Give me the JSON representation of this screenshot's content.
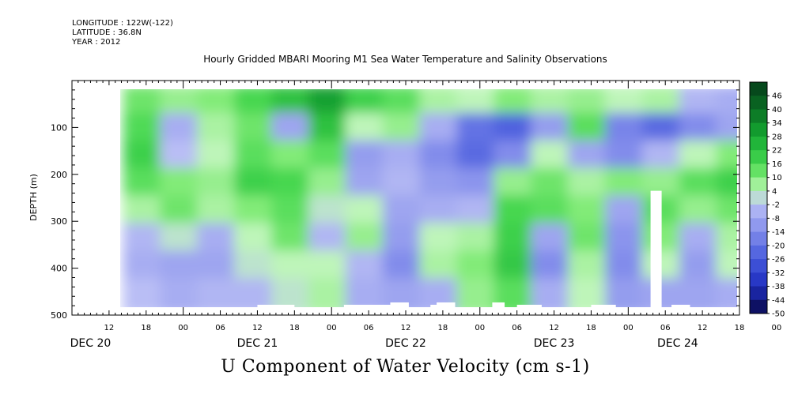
{
  "header": {
    "longitude": "LONGITUDE : 122W(-122)",
    "latitude": "LATITUDE : 36.8N",
    "year": "YEAR : 2012"
  },
  "chart_data": {
    "type": "heatmap",
    "title": "Hourly Gridded MBARI Mooring M1 Sea Water Temperature and Salinity Observations",
    "footer_label": "U Component of Water Velocity (cm s-1)",
    "xlabel": "",
    "ylabel": "DEPTH (m)",
    "y_axis": {
      "range": [
        500,
        0
      ],
      "ticks": [
        100,
        200,
        300,
        400,
        500
      ],
      "tick_labels": [
        "100",
        "200",
        "300",
        "400",
        "500"
      ],
      "inverted": true
    },
    "x_axis": {
      "hour_ticks": [
        "12",
        "18",
        "00",
        "06",
        "12",
        "18",
        "00",
        "06",
        "12",
        "18",
        "00",
        "06",
        "12",
        "18",
        "00",
        "06",
        "12",
        "18",
        "00",
        "06",
        "12",
        "18"
      ],
      "day_labels": [
        "DEC 20",
        "DEC 21",
        "DEC 22",
        "DEC 23",
        "DEC 24"
      ],
      "start": "2012-12-20 06:00",
      "end": "2012-12-24 18:00"
    },
    "colorbar": {
      "levels": [
        -50,
        -44,
        -38,
        -32,
        -26,
        -20,
        -14,
        -8,
        -2,
        4,
        10,
        16,
        22,
        28,
        34,
        40,
        46
      ],
      "labels": [
        "46",
        "40",
        "34",
        "28",
        "22",
        "16",
        "10",
        "4",
        "-2",
        "-8",
        "-14",
        "-20",
        "-26",
        "-32",
        "-38",
        "-44",
        "-50"
      ]
    },
    "data_coverage": {
      "start": "2012-12-20 18:00",
      "end": "2012-12-24 18:00",
      "depth_range_m": [
        20,
        490
      ]
    },
    "columns": [
      {
        "time": "Dec 20 18:00",
        "values": [
          12,
          15,
          18,
          14,
          6,
          -4,
          -6,
          -2
        ]
      },
      {
        "time": "Dec 21 00:00",
        "values": [
          8,
          -6,
          -2,
          10,
          12,
          2,
          -8,
          -6
        ]
      },
      {
        "time": "Dec 21 06:00",
        "values": [
          10,
          6,
          4,
          8,
          6,
          -6,
          -8,
          -4
        ]
      },
      {
        "time": "Dec 21 12:00",
        "values": [
          16,
          12,
          14,
          18,
          10,
          4,
          2,
          -4
        ]
      },
      {
        "time": "Dec 21 18:00",
        "values": [
          22,
          -8,
          10,
          16,
          14,
          12,
          4,
          2
        ]
      },
      {
        "time": "Dec 22 00:00",
        "values": [
          30,
          22,
          14,
          8,
          2,
          -4,
          4,
          6
        ]
      },
      {
        "time": "Dec 22 06:00",
        "values": [
          18,
          4,
          -10,
          -8,
          4,
          8,
          -4,
          -6
        ]
      },
      {
        "time": "Dec 22 12:00",
        "values": [
          14,
          8,
          -6,
          -4,
          -8,
          -10,
          -14,
          -8
        ]
      },
      {
        "time": "Dec 22 18:00",
        "values": [
          6,
          -6,
          -14,
          -10,
          -6,
          4,
          6,
          -6
        ]
      },
      {
        "time": "Dec 23 00:00",
        "values": [
          4,
          -20,
          -22,
          -12,
          -4,
          6,
          10,
          8
        ]
      },
      {
        "time": "Dec 23 06:00",
        "values": [
          10,
          -24,
          -14,
          8,
          16,
          18,
          20,
          14
        ]
      },
      {
        "time": "Dec 23 12:00",
        "values": [
          6,
          -10,
          4,
          12,
          14,
          -8,
          -14,
          -6
        ]
      },
      {
        "time": "Dec 23 18:00",
        "values": [
          8,
          14,
          -8,
          6,
          10,
          12,
          6,
          4
        ]
      },
      {
        "time": "Dec 24 00:00",
        "values": [
          4,
          -16,
          -14,
          10,
          -8,
          -12,
          -14,
          -10
        ]
      },
      {
        "time": "Dec 24 06:00",
        "values": [
          6,
          -22,
          -4,
          8,
          14,
          10,
          4,
          -8
        ]
      },
      {
        "time": "Dec 24 12:00",
        "values": [
          -4,
          -14,
          4,
          14,
          8,
          -6,
          -10,
          -8
        ]
      },
      {
        "time": "Dec 24 18:00",
        "values": [
          -6,
          -8,
          10,
          18,
          12,
          6,
          4,
          -6
        ]
      }
    ]
  }
}
